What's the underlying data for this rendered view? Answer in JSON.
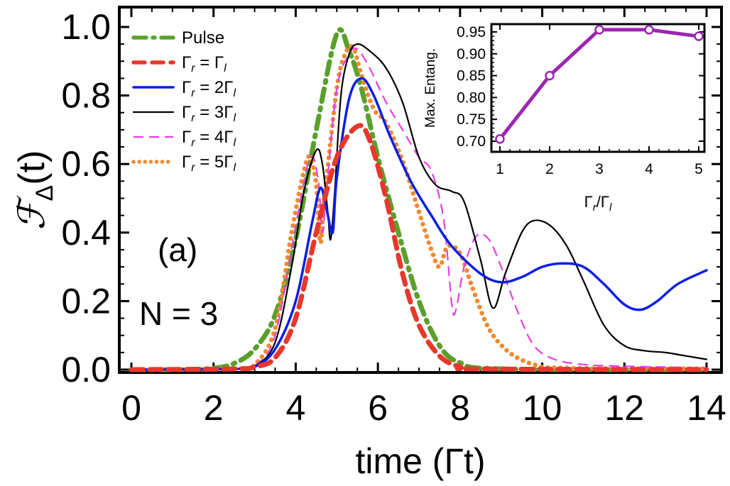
{
  "chart_data": {
    "type": "line",
    "xlabel": "time (Γt)",
    "ylabel_main": "ℱ",
    "ylabel_sub": "Δ",
    "ylabel_tail": "(t)",
    "xlim": [
      0,
      14
    ],
    "ylim": [
      0,
      1.0
    ],
    "x_ticks": [
      "0",
      "2",
      "4",
      "6",
      "8",
      "10",
      "12",
      "14"
    ],
    "y_ticks": [
      "0.0",
      "0.2",
      "0.4",
      "0.6",
      "0.8",
      "1.0"
    ],
    "annotations": {
      "panel_label": "(a)",
      "n_label": "N = 3"
    },
    "series": [
      {
        "name": "Pulse",
        "label_parts": [
          "Pulse"
        ],
        "color": "#5aa02c",
        "points": [
          [
            0,
            0
          ],
          [
            1,
            0
          ],
          [
            1.5,
            0.001
          ],
          [
            2,
            0.004
          ],
          [
            2.5,
            0.018
          ],
          [
            3,
            0.06
          ],
          [
            3.5,
            0.16
          ],
          [
            4,
            0.38
          ],
          [
            4.5,
            0.7
          ],
          [
            5,
            0.98
          ],
          [
            5.3,
            0.93
          ],
          [
            5.6,
            0.82
          ],
          [
            6,
            0.62
          ],
          [
            6.5,
            0.4
          ],
          [
            7,
            0.2
          ],
          [
            7.5,
            0.07
          ],
          [
            8,
            0.02
          ],
          [
            9,
            0.002
          ],
          [
            14,
            0
          ]
        ]
      },
      {
        "name": "Γr = Γl",
        "label_parts": [
          "Γ",
          "r",
          " = Γ",
          "l"
        ],
        "color": "#e8372c",
        "points": [
          [
            0,
            0
          ],
          [
            2.5,
            0.002
          ],
          [
            3,
            0.008
          ],
          [
            3.5,
            0.035
          ],
          [
            4,
            0.15
          ],
          [
            4.5,
            0.4
          ],
          [
            5,
            0.62
          ],
          [
            5.5,
            0.71
          ],
          [
            5.8,
            0.67
          ],
          [
            6.2,
            0.5
          ],
          [
            6.6,
            0.28
          ],
          [
            7,
            0.13
          ],
          [
            7.5,
            0.04
          ],
          [
            8,
            0.008
          ],
          [
            8.5,
            0.002
          ],
          [
            14,
            0
          ]
        ]
      },
      {
        "name": "Γr = 2Γl",
        "label_parts": [
          "Γ",
          "r",
          " = 2Γ",
          "l"
        ],
        "color": "#0b1ee6",
        "points": [
          [
            0,
            0
          ],
          [
            2.5,
            0.002
          ],
          [
            3,
            0.008
          ],
          [
            3.5,
            0.06
          ],
          [
            4,
            0.2
          ],
          [
            4.4,
            0.43
          ],
          [
            4.6,
            0.53
          ],
          [
            4.75,
            0.47
          ],
          [
            4.9,
            0.4
          ],
          [
            5.0,
            0.56
          ],
          [
            5.3,
            0.79
          ],
          [
            5.6,
            0.85
          ],
          [
            5.9,
            0.8
          ],
          [
            6.3,
            0.68
          ],
          [
            6.8,
            0.55
          ],
          [
            7.3,
            0.45
          ],
          [
            7.8,
            0.36
          ],
          [
            8.5,
            0.28
          ],
          [
            9,
            0.255
          ],
          [
            9.5,
            0.27
          ],
          [
            10,
            0.3
          ],
          [
            10.5,
            0.31
          ],
          [
            11,
            0.3
          ],
          [
            11.5,
            0.25
          ],
          [
            12,
            0.19
          ],
          [
            12.4,
            0.175
          ],
          [
            12.8,
            0.2
          ],
          [
            13.3,
            0.25
          ],
          [
            14,
            0.29
          ]
        ]
      },
      {
        "name": "Γr = 3Γl",
        "label_parts": [
          "Γ",
          "r",
          " = 3Γ",
          "l"
        ],
        "color": "#000000",
        "points": [
          [
            0,
            0
          ],
          [
            2.5,
            0.002
          ],
          [
            3,
            0.01
          ],
          [
            3.5,
            0.08
          ],
          [
            3.9,
            0.3
          ],
          [
            4.2,
            0.52
          ],
          [
            4.5,
            0.64
          ],
          [
            4.65,
            0.6
          ],
          [
            4.78,
            0.46
          ],
          [
            4.85,
            0.38
          ],
          [
            4.95,
            0.52
          ],
          [
            5.1,
            0.8
          ],
          [
            5.3,
            0.92
          ],
          [
            5.5,
            0.95
          ],
          [
            5.8,
            0.93
          ],
          [
            6.2,
            0.88
          ],
          [
            6.6,
            0.78
          ],
          [
            7,
            0.62
          ],
          [
            7.4,
            0.54
          ],
          [
            7.8,
            0.52
          ],
          [
            8.1,
            0.49
          ],
          [
            8.5,
            0.32
          ],
          [
            8.8,
            0.18
          ],
          [
            9.1,
            0.28
          ],
          [
            9.5,
            0.4
          ],
          [
            9.8,
            0.435
          ],
          [
            10.2,
            0.42
          ],
          [
            10.6,
            0.36
          ],
          [
            11,
            0.26
          ],
          [
            11.5,
            0.13
          ],
          [
            12,
            0.07
          ],
          [
            12.5,
            0.055
          ],
          [
            13,
            0.05
          ],
          [
            13.5,
            0.04
          ],
          [
            14,
            0.03
          ]
        ]
      },
      {
        "name": "Γr = 4Γl",
        "label_parts": [
          "Γ",
          "r",
          " = 4Γ",
          "l"
        ],
        "color": "#e83ee8",
        "points": [
          [
            0,
            0
          ],
          [
            2.5,
            0.002
          ],
          [
            3,
            0.012
          ],
          [
            3.5,
            0.1
          ],
          [
            4,
            0.42
          ],
          [
            4.35,
            0.62
          ],
          [
            4.55,
            0.55
          ],
          [
            4.65,
            0.4
          ],
          [
            4.75,
            0.52
          ],
          [
            5,
            0.82
          ],
          [
            5.3,
            0.92
          ],
          [
            5.5,
            0.935
          ],
          [
            5.8,
            0.88
          ],
          [
            6.2,
            0.78
          ],
          [
            6.6,
            0.7
          ],
          [
            7,
            0.62
          ],
          [
            7.3,
            0.58
          ],
          [
            7.6,
            0.44
          ],
          [
            7.8,
            0.19
          ],
          [
            7.9,
            0.175
          ],
          [
            8.1,
            0.3
          ],
          [
            8.4,
            0.39
          ],
          [
            8.7,
            0.38
          ],
          [
            9,
            0.3
          ],
          [
            9.4,
            0.17
          ],
          [
            9.8,
            0.07
          ],
          [
            10.3,
            0.03
          ],
          [
            11,
            0.015
          ],
          [
            12,
            0.01
          ],
          [
            14,
            0.005
          ]
        ]
      },
      {
        "name": "Γr = 5Γl",
        "label_parts": [
          "Γ",
          "r",
          " = 5Γ",
          "l"
        ],
        "color": "#f08a30",
        "points": [
          [
            0,
            0
          ],
          [
            2.5,
            0.003
          ],
          [
            3,
            0.015
          ],
          [
            3.5,
            0.12
          ],
          [
            3.9,
            0.4
          ],
          [
            4.2,
            0.58
          ],
          [
            4.35,
            0.62
          ],
          [
            4.5,
            0.54
          ],
          [
            4.6,
            0.37
          ],
          [
            4.7,
            0.5
          ],
          [
            5,
            0.82
          ],
          [
            5.2,
            0.92
          ],
          [
            5.4,
            0.94
          ],
          [
            5.6,
            0.86
          ],
          [
            5.9,
            0.76
          ],
          [
            6.2,
            0.72
          ],
          [
            6.6,
            0.61
          ],
          [
            7,
            0.46
          ],
          [
            7.3,
            0.35
          ],
          [
            7.5,
            0.3
          ],
          [
            7.7,
            0.36
          ],
          [
            8,
            0.34
          ],
          [
            8.3,
            0.24
          ],
          [
            8.7,
            0.12
          ],
          [
            9.2,
            0.05
          ],
          [
            9.8,
            0.015
          ],
          [
            10.5,
            0.005
          ],
          [
            14,
            0.003
          ]
        ]
      }
    ],
    "inset": {
      "type": "line",
      "xlabel_parts": [
        "Γ",
        "r",
        "/Γ",
        "l"
      ],
      "ylabel": "Max. Entang.",
      "xlim": [
        1,
        5
      ],
      "ylim": [
        0.7,
        0.96
      ],
      "x_ticks": [
        "1",
        "2",
        "3",
        "4",
        "5"
      ],
      "y_ticks": [
        "0.70",
        "0.75",
        "0.80",
        "0.85",
        "0.90",
        "0.95"
      ],
      "color": "#9b27b0",
      "x": [
        1,
        2,
        3,
        4,
        5
      ],
      "values": [
        0.705,
        0.85,
        0.955,
        0.955,
        0.94
      ]
    }
  }
}
